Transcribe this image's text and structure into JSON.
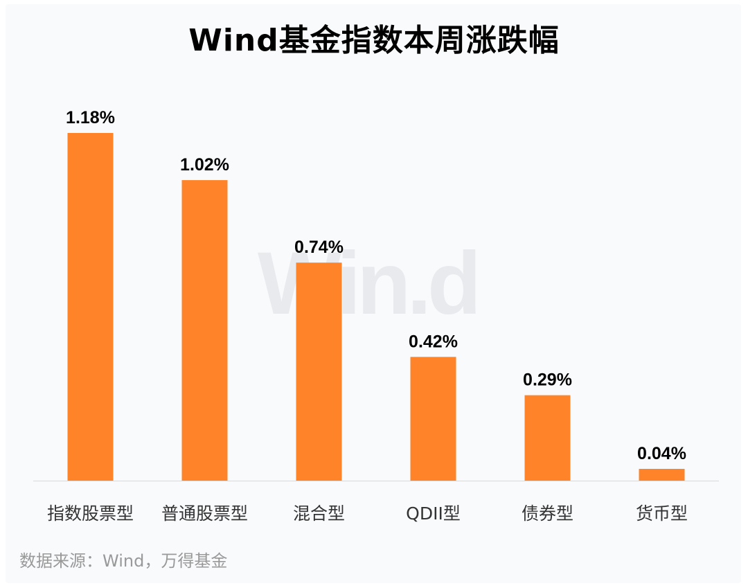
{
  "chart_data": {
    "type": "bar",
    "title": "Wind基金指数本周涨跌幅",
    "categories": [
      "指数股票型",
      "普通股票型",
      "混合型",
      "QDII型",
      "债券型",
      "货币型"
    ],
    "values": [
      1.18,
      1.02,
      0.74,
      0.42,
      0.29,
      0.04
    ],
    "data_labels": [
      "1.18%",
      "1.02%",
      "0.74%",
      "0.42%",
      "0.29%",
      "0.04%"
    ],
    "unit": "%",
    "ylim": [
      0,
      1.18
    ],
    "grid": false,
    "legend": "none",
    "bar_color": "#ff8429",
    "axis_color": "#d9d9d9"
  },
  "watermark": "Win.d",
  "source": "数据来源：Wind，万得基金"
}
